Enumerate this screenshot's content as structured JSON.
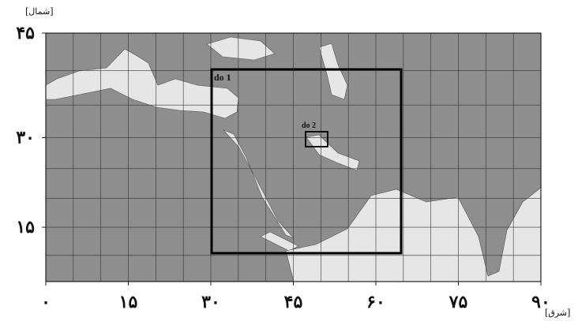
{
  "axes": {
    "x_label": "[شرق]",
    "y_label": "[شمال]",
    "x_ticks": [
      {
        "value": 0,
        "label": "۰"
      },
      {
        "value": 15,
        "label": "۱۵"
      },
      {
        "value": 30,
        "label": "۳۰"
      },
      {
        "value": 45,
        "label": "۴۵"
      },
      {
        "value": 60,
        "label": "۶۰"
      },
      {
        "value": 75,
        "label": "۷۵"
      },
      {
        "value": 90,
        "label": "۹۰"
      }
    ],
    "y_ticks": [
      {
        "value": 15,
        "label": "۱۵"
      },
      {
        "value": 30,
        "label": "۳۰"
      },
      {
        "value": 45,
        "label": "۴۵"
      }
    ]
  },
  "domains": [
    {
      "label": "do 1"
    },
    {
      "label": "do 2"
    }
  ]
}
